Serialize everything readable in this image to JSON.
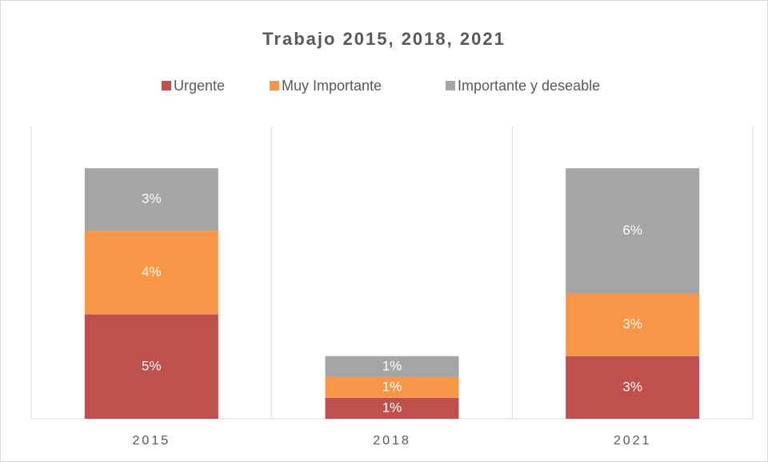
{
  "chart_data": {
    "type": "stacked_bar",
    "title": "Trabajo 2015, 2018, 2021",
    "categories": [
      "2015",
      "2018",
      "2021"
    ],
    "series": [
      {
        "name": "Urgente",
        "color": "#c0504d",
        "values": [
          5,
          1,
          3
        ],
        "value_labels": [
          "5%",
          "1%",
          "3%"
        ]
      },
      {
        "name": "Muy Importante",
        "color": "#f79646",
        "values": [
          4,
          1,
          3
        ],
        "value_labels": [
          "4%",
          "1%",
          "3%"
        ]
      },
      {
        "name": "Importante y deseable",
        "color": "#a5a5a5",
        "values": [
          3,
          1,
          6
        ],
        "value_labels": [
          "3%",
          "1%",
          "6%"
        ]
      }
    ],
    "ylim": [
      0,
      14
    ],
    "legend": "top"
  }
}
